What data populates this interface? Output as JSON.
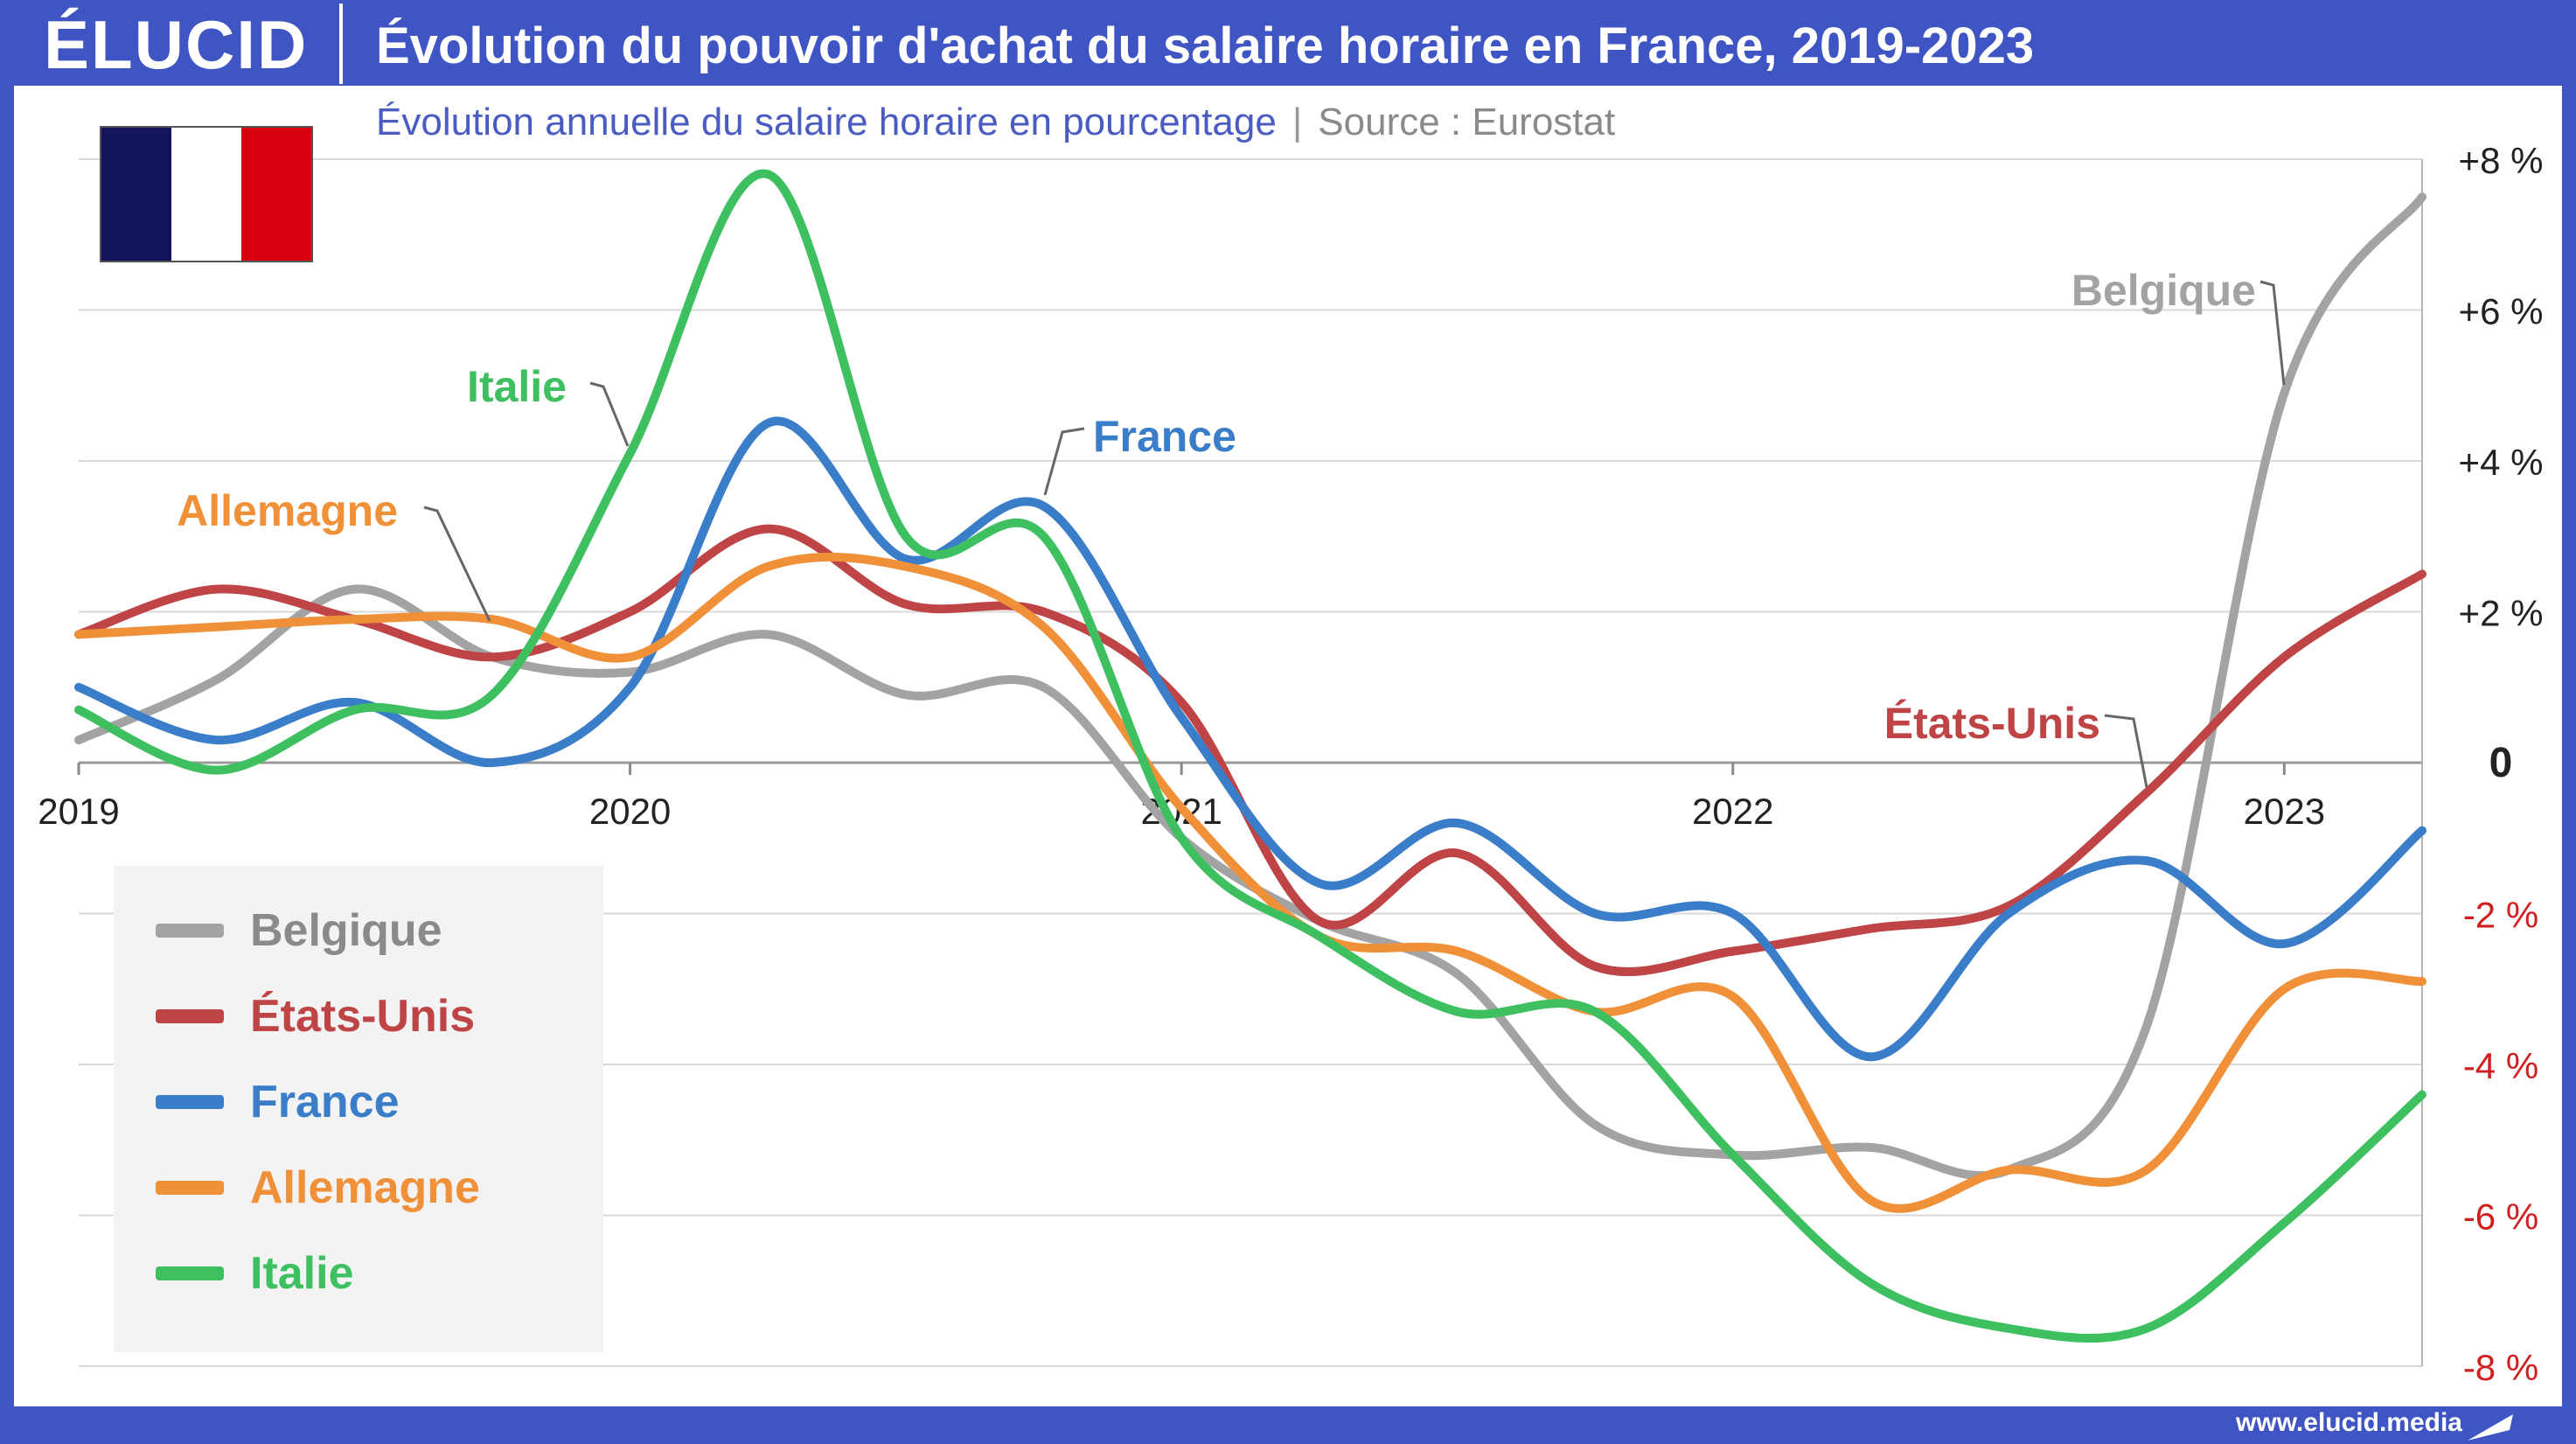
{
  "header": {
    "logo": "ÉLUCID",
    "title": "Évolution du pouvoir d'achat du salaire horaire en France, 2019-2023"
  },
  "subtitle": {
    "main": "Évolution annuelle du salaire horaire en pourcentage",
    "separator": "|",
    "source": "Source : Eurostat"
  },
  "flag": {
    "colors": [
      "#14145e",
      "#ffffff",
      "#d6000f"
    ]
  },
  "footer": {
    "url": "www.elucid.media"
  },
  "chart_data": {
    "type": "line",
    "ylim": [
      -8,
      8
    ],
    "xlim": [
      2019,
      2023.25
    ],
    "x_ticks": [
      2019,
      2020,
      2021,
      2022,
      2023
    ],
    "x_tick_labels": [
      "2019",
      "2020",
      "2021",
      "2022",
      "2023"
    ],
    "y_ticks": [
      8,
      6,
      4,
      2,
      0,
      -2,
      -4,
      -6,
      -8
    ],
    "y_tick_labels": [
      "+8 %",
      "+6 %",
      "+4 %",
      "+2 %",
      "0",
      "-2 %",
      "-4 %",
      "-6 %",
      "-8 %"
    ],
    "grid": true,
    "legend_position": "bottom-left",
    "series": [
      {
        "name": "Belgique",
        "color": "#a3a3a3",
        "x": [
          2019,
          2019.25,
          2019.5,
          2019.75,
          2020,
          2020.25,
          2020.5,
          2020.75,
          2021,
          2021.25,
          2021.5,
          2021.75,
          2022,
          2022.25,
          2022.5,
          2022.75,
          2023,
          2023.25
        ],
        "values": [
          0.3,
          1.1,
          2.3,
          1.4,
          1.2,
          1.7,
          0.9,
          1.0,
          -1.0,
          -2.1,
          -2.8,
          -4.8,
          -5.2,
          -5.1,
          -5.4,
          -3.5,
          4.9,
          7.5
        ]
      },
      {
        "name": "États-Unis",
        "color": "#bf4446",
        "x": [
          2019,
          2019.25,
          2019.5,
          2019.75,
          2020,
          2020.25,
          2020.5,
          2020.75,
          2021,
          2021.25,
          2021.5,
          2021.75,
          2022,
          2022.25,
          2022.5,
          2022.75,
          2023,
          2023.25
        ],
        "values": [
          1.7,
          2.3,
          1.9,
          1.4,
          2.0,
          3.1,
          2.1,
          2.0,
          0.8,
          -2.1,
          -1.2,
          -2.7,
          -2.5,
          -2.2,
          -1.9,
          -0.4,
          1.4,
          2.5
        ]
      },
      {
        "name": "France",
        "color": "#3a7dc9",
        "x": [
          2019,
          2019.25,
          2019.5,
          2019.75,
          2020,
          2020.25,
          2020.5,
          2020.75,
          2021,
          2021.25,
          2021.5,
          2021.75,
          2022,
          2022.25,
          2022.5,
          2022.75,
          2023,
          2023.25
        ],
        "values": [
          1.0,
          0.3,
          0.8,
          0.0,
          1.0,
          4.5,
          2.7,
          3.4,
          0.6,
          -1.6,
          -0.8,
          -2.0,
          -2.0,
          -3.9,
          -2.0,
          -1.3,
          -2.4,
          -0.9
        ]
      },
      {
        "name": "Allemagne",
        "color": "#f0913a",
        "x": [
          2019,
          2019.25,
          2019.5,
          2019.75,
          2020,
          2020.25,
          2020.5,
          2020.75,
          2021,
          2021.25,
          2021.5,
          2021.75,
          2022,
          2022.25,
          2022.5,
          2022.75,
          2023,
          2023.25
        ],
        "values": [
          1.7,
          1.8,
          1.9,
          1.9,
          1.4,
          2.6,
          2.6,
          1.8,
          -0.6,
          -2.3,
          -2.5,
          -3.3,
          -3.1,
          -5.8,
          -5.4,
          -5.4,
          -3.0,
          -2.9
        ]
      },
      {
        "name": "Italie",
        "color": "#3ec061",
        "x": [
          2019,
          2019.25,
          2019.5,
          2019.75,
          2020,
          2020.25,
          2020.5,
          2020.75,
          2021,
          2021.25,
          2021.5,
          2021.75,
          2022,
          2022.25,
          2022.5,
          2022.75,
          2023,
          2023.25
        ],
        "values": [
          0.7,
          -0.1,
          0.7,
          0.9,
          4.1,
          7.8,
          3.0,
          3.0,
          -1.0,
          -2.3,
          -3.3,
          -3.3,
          -5.2,
          -6.9,
          -7.5,
          -7.5,
          -6.1,
          -4.4
        ]
      }
    ],
    "annotations": [
      {
        "series": "Belgique",
        "text": "Belgique"
      },
      {
        "series": "États-Unis",
        "text": "États-Unis"
      },
      {
        "series": "France",
        "text": "France"
      },
      {
        "series": "Allemagne",
        "text": "Allemagne"
      },
      {
        "series": "Italie",
        "text": "Italie"
      }
    ]
  }
}
